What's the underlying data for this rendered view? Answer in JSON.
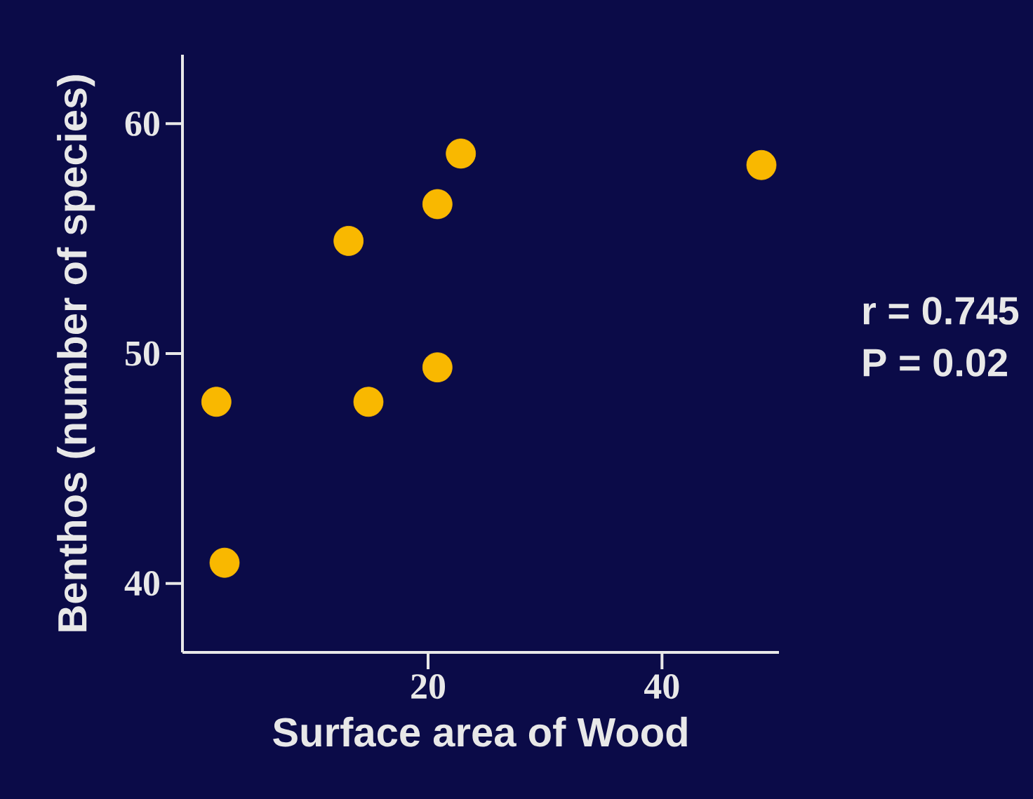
{
  "chart_data": {
    "type": "scatter",
    "xlabel": "Surface area of  Wood",
    "ylabel": "Benthos (number of species)",
    "x": [
      1.9,
      2.6,
      13.2,
      14.9,
      20.8,
      22.8,
      20.8,
      48.5
    ],
    "values": [
      47.9,
      40.9,
      54.9,
      47.9,
      56.5,
      58.7,
      49.4,
      58.2
    ],
    "color": "#f9b800",
    "xlim": [
      -1,
      50
    ],
    "ylim": [
      37,
      63
    ],
    "xticks": [
      20,
      40
    ],
    "yticks": [
      40,
      50,
      60
    ],
    "grid": false,
    "annotations": [
      "r = 0.745",
      "P = 0.02"
    ]
  }
}
